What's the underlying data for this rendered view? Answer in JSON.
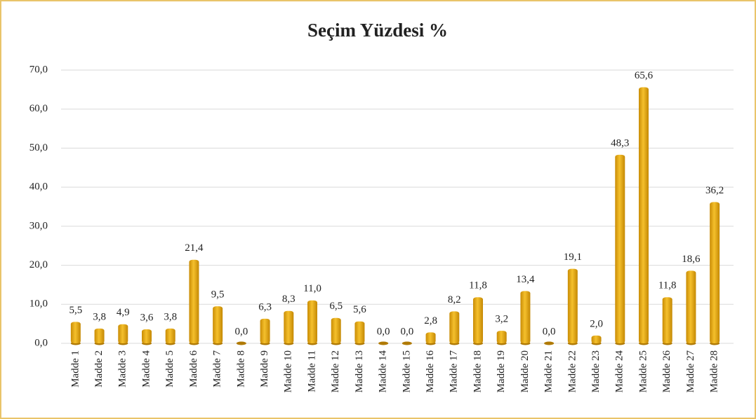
{
  "chart_data": {
    "type": "bar",
    "title": "Seçim Yüzdesi %",
    "categories": [
      "Madde 1",
      "Madde 2",
      "Madde 3",
      "Madde 4",
      "Madde 5",
      "Madde 6",
      "Madde 7",
      "Madde 8",
      "Madde 9",
      "Madde 10",
      "Madde 11",
      "Madde 12",
      "Madde 13",
      "Madde 14",
      "Madde 15",
      "Madde 16",
      "Madde 17",
      "Madde 18",
      "Madde 19",
      "Madde 20",
      "Madde 21",
      "Madde 22",
      "Madde 23",
      "Madde 24",
      "Madde 25",
      "Madde 26",
      "Madde 27",
      "Madde 28"
    ],
    "values": [
      5.5,
      3.8,
      4.9,
      3.6,
      3.8,
      21.4,
      9.5,
      0.0,
      6.3,
      8.3,
      11.0,
      6.5,
      5.6,
      0.0,
      0.0,
      2.8,
      8.2,
      11.8,
      3.2,
      13.4,
      0.0,
      19.1,
      2.0,
      48.3,
      65.6,
      11.8,
      18.6,
      36.2
    ],
    "value_labels": [
      "5,5",
      "3,8",
      "4,9",
      "3,6",
      "3,8",
      "21,4",
      "9,5",
      "0,0",
      "6,3",
      "8,3",
      "11,0",
      "6,5",
      "5,6",
      "0,0",
      "0,0",
      "2,8",
      "8,2",
      "11,8",
      "3,2",
      "13,4",
      "0,0",
      "19,1",
      "2,0",
      "48,3",
      "65,6",
      "11,8",
      "18,6",
      "36,2"
    ],
    "color": "#e8a90f",
    "ylim": [
      0,
      70
    ],
    "yticks": [
      {
        "value": 0,
        "label": "0,0"
      },
      {
        "value": 10,
        "label": "10,0"
      },
      {
        "value": 20,
        "label": "20,0"
      },
      {
        "value": 30,
        "label": "30,0"
      },
      {
        "value": 40,
        "label": "40,0"
      },
      {
        "value": 50,
        "label": "50,0"
      },
      {
        "value": 60,
        "label": "60,0"
      },
      {
        "value": 70,
        "label": "70,0"
      }
    ],
    "grid": true
  }
}
